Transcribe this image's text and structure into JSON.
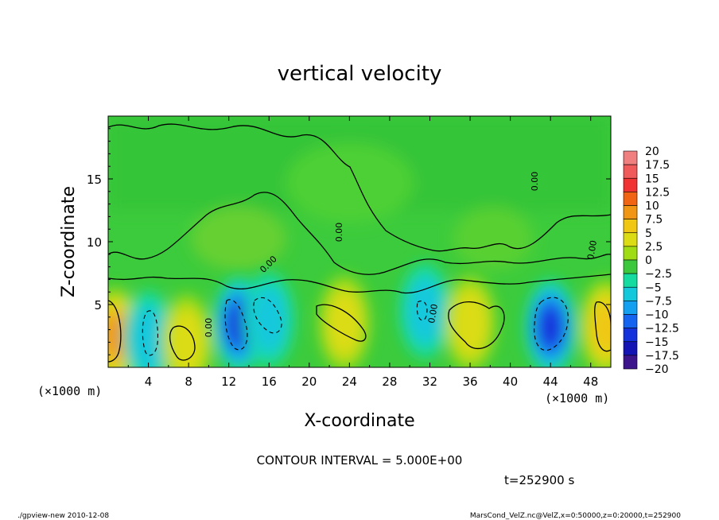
{
  "chart_data": {
    "type": "heatmap",
    "title": "vertical velocity",
    "xlabel": "X-coordinate",
    "ylabel": "Z-coordinate",
    "x_unit": "(×1000 m)",
    "y_unit": "(×1000 m)",
    "xlim": [
      0,
      50
    ],
    "ylim": [
      0,
      20
    ],
    "x_ticks": [
      "4",
      "8",
      "12",
      "16",
      "20",
      "24",
      "28",
      "32",
      "36",
      "40",
      "44",
      "48"
    ],
    "y_ticks": [
      "5",
      "10",
      "15"
    ],
    "colorbar": {
      "labels": [
        "20",
        "17.5",
        "15",
        "12.5",
        "10",
        "7.5",
        "5",
        "2.5",
        "0",
        "−2.5",
        "−5",
        "−7.5",
        "−10",
        "−12.5",
        "−15",
        "−17.5",
        "−20"
      ],
      "colors": [
        "#f08080",
        "#f05a5a",
        "#f03232",
        "#f06414",
        "#f09614",
        "#f0c814",
        "#dcdc14",
        "#a0dc14",
        "#3cc83c",
        "#14dca0",
        "#14c8dc",
        "#14a0f0",
        "#1464f0",
        "#1432dc",
        "#1414b4",
        "#3c148c",
        "#781478"
      ]
    },
    "contour_interval": "CONTOUR INTERVAL = 5.000E+00",
    "contour_labels": [
      "0.00",
      "0.00",
      "0.00",
      "0.00",
      "0.00",
      "0.00"
    ],
    "time_label": "t=252900 s",
    "features": [
      {
        "x": 0.7,
        "z": 2.5,
        "w": 10,
        "kind": "updraft"
      },
      {
        "x": 4.0,
        "z": 2.3,
        "w": -5,
        "kind": "downdraft"
      },
      {
        "x": 7.8,
        "z": 2.0,
        "w": 6,
        "kind": "updraft"
      },
      {
        "x": 13.0,
        "z": 3.4,
        "w": -12,
        "kind": "downdraft"
      },
      {
        "x": 16.0,
        "z": 3.8,
        "w": -6,
        "kind": "downdraft"
      },
      {
        "x": 23.5,
        "z": 3.5,
        "w": 4,
        "kind": "updraft"
      },
      {
        "x": 31.5,
        "z": 4.5,
        "w": -4,
        "kind": "downdraft"
      },
      {
        "x": 36.0,
        "z": 3.5,
        "w": 6,
        "kind": "updraft"
      },
      {
        "x": 44.0,
        "z": 3.2,
        "w": -12,
        "kind": "downdraft"
      },
      {
        "x": 49.5,
        "z": 3.2,
        "w": 8,
        "kind": "updraft"
      }
    ]
  },
  "footer": {
    "left": "./gpview-new  2010-12-08",
    "right": "MarsCond_VelZ.nc@VelZ,x=0:50000,z=0:20000,t=252900"
  }
}
